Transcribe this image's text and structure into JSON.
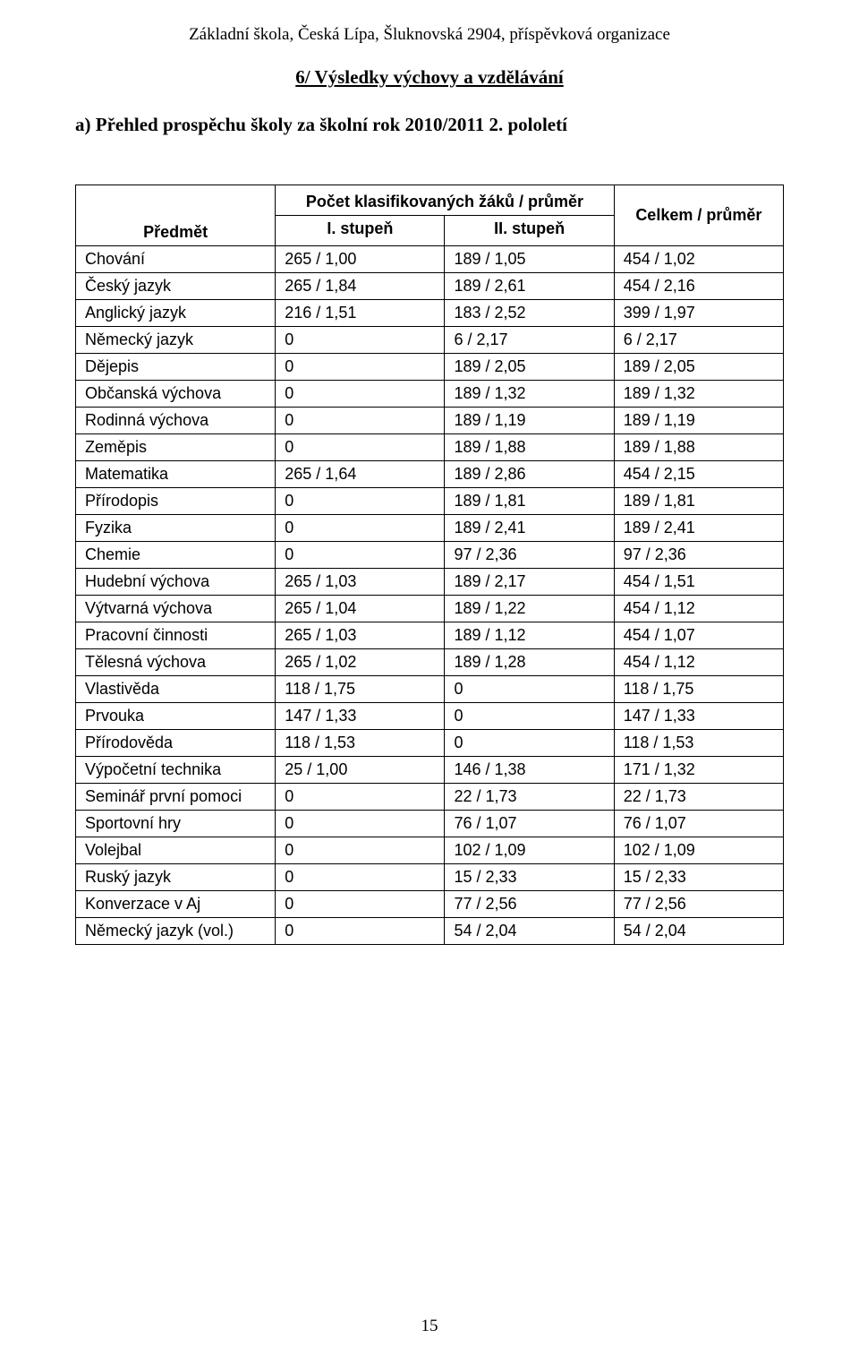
{
  "page": {
    "header": "Základní škola, Česká Lípa, Šluknovská 2904, příspěvková organizace",
    "section_title": "6/ Výsledky výchovy a vzdělávání",
    "subline": "a)  Přehled prospěchu školy za školní rok 2010/2011 2. pololetí",
    "page_number": "15"
  },
  "table": {
    "type": "table",
    "font_family": "Arial",
    "header_fontsize": 18,
    "body_fontsize": 18,
    "border_color": "#000000",
    "background_color": "#ffffff",
    "col_headers": {
      "subject": "Předmět",
      "group": "Počet klasifikovaných žáků / průměr",
      "stage1": "I. stupeň",
      "stage2": "II. stupeň",
      "total": "Celkem / průměr"
    },
    "rows": [
      {
        "subject": "Chování",
        "s1": "265 / 1,00",
        "s2": "189 / 1,05",
        "tot": "454 / 1,02"
      },
      {
        "subject": "Český jazyk",
        "s1": "265 / 1,84",
        "s2": "189 / 2,61",
        "tot": "454 / 2,16"
      },
      {
        "subject": "Anglický jazyk",
        "s1": "216 / 1,51",
        "s2": "183 / 2,52",
        "tot": "399 / 1,97"
      },
      {
        "subject": "Německý jazyk",
        "s1": "0",
        "s2": "6 / 2,17",
        "tot": "6 / 2,17"
      },
      {
        "subject": "Dějepis",
        "s1": "0",
        "s2": "189 / 2,05",
        "tot": "189 / 2,05"
      },
      {
        "subject": "Občanská výchova",
        "s1": "0",
        "s2": "189 / 1,32",
        "tot": "189 / 1,32"
      },
      {
        "subject": "Rodinná výchova",
        "s1": "0",
        "s2": "189 / 1,19",
        "tot": "189 / 1,19"
      },
      {
        "subject": "Zeměpis",
        "s1": "0",
        "s2": "189 / 1,88",
        "tot": "189 / 1,88"
      },
      {
        "subject": "Matematika",
        "s1": "265 / 1,64",
        "s2": "189 / 2,86",
        "tot": "454 / 2,15"
      },
      {
        "subject": "Přírodopis",
        "s1": "0",
        "s2": "189 / 1,81",
        "tot": "189 / 1,81"
      },
      {
        "subject": "Fyzika",
        "s1": "0",
        "s2": "189 / 2,41",
        "tot": "189 / 2,41"
      },
      {
        "subject": "Chemie",
        "s1": "0",
        "s2": "97 / 2,36",
        "tot": "97 / 2,36"
      },
      {
        "subject": "Hudební výchova",
        "s1": "265 / 1,03",
        "s2": "189 / 2,17",
        "tot": "454 / 1,51"
      },
      {
        "subject": "Výtvarná výchova",
        "s1": "265 / 1,04",
        "s2": "189 / 1,22",
        "tot": "454 / 1,12"
      },
      {
        "subject": "Pracovní činnosti",
        "s1": "265 / 1,03",
        "s2": "189 / 1,12",
        "tot": "454 / 1,07"
      },
      {
        "subject": "Tělesná výchova",
        "s1": "265 / 1,02",
        "s2": "189 / 1,28",
        "tot": "454 / 1,12"
      },
      {
        "subject": "Vlastivěda",
        "s1": "118 / 1,75",
        "s2": "0",
        "tot": "118 / 1,75"
      },
      {
        "subject": "Prvouka",
        "s1": "147 / 1,33",
        "s2": "0",
        "tot": "147 / 1,33"
      },
      {
        "subject": "Přírodověda",
        "s1": "118 / 1,53",
        "s2": "0",
        "tot": "118 / 1,53"
      },
      {
        "subject": "Výpočetní technika",
        "s1": "25 / 1,00",
        "s2": "146 / 1,38",
        "tot": "171 / 1,32"
      },
      {
        "subject": "Seminář první pomoci",
        "s1": "0",
        "s2": "22 / 1,73",
        "tot": "22 / 1,73"
      },
      {
        "subject": "Sportovní hry",
        "s1": "0",
        "s2": "76 / 1,07",
        "tot": "76 / 1,07"
      },
      {
        "subject": "Volejbal",
        "s1": "0",
        "s2": "102 / 1,09",
        "tot": "102 / 1,09"
      },
      {
        "subject": "Ruský jazyk",
        "s1": "0",
        "s2": "15 / 2,33",
        "tot": "15 / 2,33"
      },
      {
        "subject": "Konverzace v Aj",
        "s1": "0",
        "s2": "77 / 2,56",
        "tot": "77 / 2,56"
      },
      {
        "subject": "Německý jazyk (vol.)",
        "s1": "0",
        "s2": "54 / 2,04",
        "tot": "54 / 2,04"
      }
    ]
  }
}
